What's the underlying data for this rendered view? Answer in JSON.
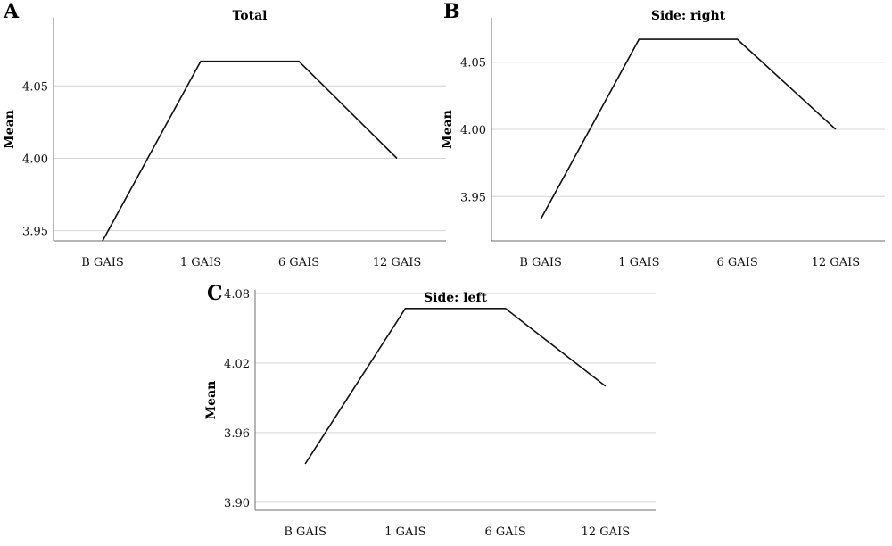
{
  "chart_data": [
    {
      "panel": "A",
      "type": "line",
      "title": "Total",
      "ylabel": "Mean",
      "xlabel": "",
      "categories": [
        "B GAIS",
        "1 GAIS",
        "6 GAIS",
        "12 GAIS"
      ],
      "values": [
        3.943,
        4.067,
        4.067,
        4.0
      ],
      "yticks": [
        3.95,
        4.0,
        4.05
      ],
      "ytick_labels": [
        "3.95",
        "4.00",
        "4.05"
      ],
      "ylim": [
        3.943,
        4.097
      ],
      "grid": "horizontal"
    },
    {
      "panel": "B",
      "type": "line",
      "title": "Side: right",
      "ylabel": "Mean",
      "xlabel": "",
      "categories": [
        "B GAIS",
        "1 GAIS",
        "6 GAIS",
        "12 GAIS"
      ],
      "values": [
        3.933,
        4.067,
        4.067,
        4.0
      ],
      "yticks": [
        3.95,
        4.0,
        4.05
      ],
      "ytick_labels": [
        "3.95",
        "4.00",
        "4.05"
      ],
      "ylim": [
        3.917,
        4.083
      ],
      "grid": "horizontal"
    },
    {
      "panel": "C",
      "type": "line",
      "title": "Side: left",
      "ylabel": "Mean",
      "xlabel": "",
      "categories": [
        "B GAIS",
        "1 GAIS",
        "6 GAIS",
        "12 GAIS"
      ],
      "values": [
        3.933,
        4.067,
        4.067,
        4.0
      ],
      "yticks": [
        3.9,
        3.96,
        4.02,
        4.08
      ],
      "ytick_labels": [
        "3.90",
        "3.96",
        "4.02",
        "4.08"
      ],
      "ylim": [
        3.893,
        4.083
      ],
      "grid": "horizontal"
    }
  ]
}
